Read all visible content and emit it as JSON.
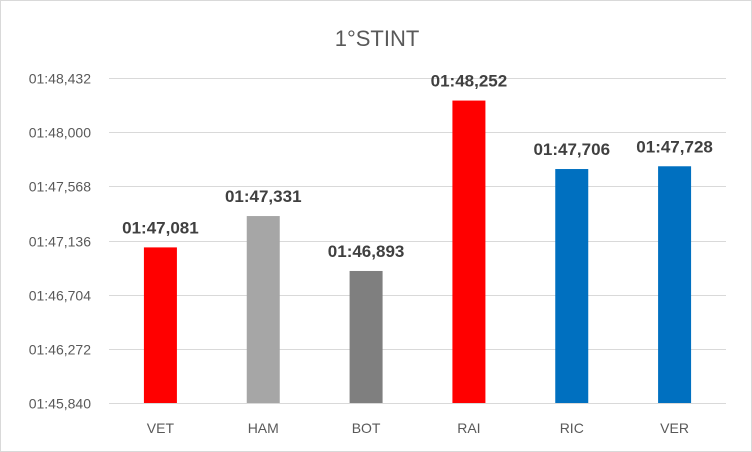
{
  "chart_data": {
    "type": "bar",
    "title": "1°STINT",
    "categories": [
      "VET",
      "HAM",
      "BOT",
      "RAI",
      "RIC",
      "VER"
    ],
    "values": [
      107.081,
      107.331,
      106.893,
      108.252,
      107.706,
      107.728
    ],
    "value_labels": [
      "01:47,081",
      "01:47,331",
      "01:46,893",
      "01:48,252",
      "01:47,706",
      "01:47,728"
    ],
    "colors": [
      "#ff0000",
      "#a6a6a6",
      "#7f7f7f",
      "#ff0000",
      "#0070c0",
      "#0070c0"
    ],
    "ylim": [
      105.84,
      108.432
    ],
    "yticks": [
      105.84,
      106.272,
      106.704,
      107.136,
      107.568,
      108.0,
      108.432
    ],
    "ytick_labels": [
      "01:45,840",
      "01:46,272",
      "01:46,704",
      "01:47,136",
      "01:47,568",
      "01:48,000",
      "01:48,432"
    ],
    "xlabel": "",
    "ylabel": "",
    "grid": true,
    "legend": "none"
  }
}
